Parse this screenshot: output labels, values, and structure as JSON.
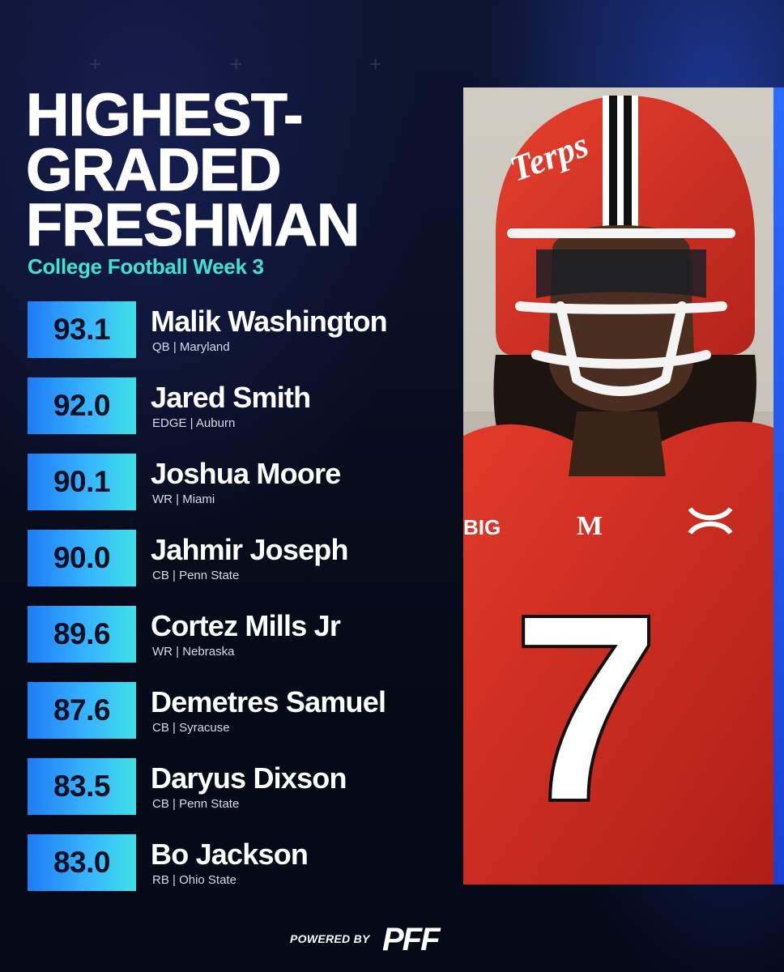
{
  "header": {
    "title": "HIGHEST-\nGRADED\nFRESHMAN",
    "subtitle": "College Football Week 3"
  },
  "players": [
    {
      "grade": "93.1",
      "name": "Malik Washington",
      "info": "QB | Maryland"
    },
    {
      "grade": "92.0",
      "name": "Jared Smith",
      "info": "EDGE | Auburn"
    },
    {
      "grade": "90.1",
      "name": "Joshua Moore",
      "info": "WR | Miami"
    },
    {
      "grade": "90.0",
      "name": "Jahmir Joseph",
      "info": "CB | Penn State"
    },
    {
      "grade": "89.6",
      "name": "Cortez Mills Jr",
      "info": "WR | Nebraska"
    },
    {
      "grade": "87.6",
      "name": "Demetres Samuel",
      "info": "CB | Syracuse"
    },
    {
      "grade": "83.5",
      "name": "Daryus Dixson",
      "info": "CB | Penn State"
    },
    {
      "grade": "83.0",
      "name": "Bo Jackson",
      "info": "RB | Ohio State"
    }
  ],
  "photo": {
    "jersey_number": "7",
    "chest_logo": "M",
    "sleeve_text": "BIG",
    "helmet_script": "Terps"
  },
  "footer": {
    "powered_by": "POWERED BY",
    "logo_text": "PFF"
  },
  "colors": {
    "accent_teal": "#3ee3d0",
    "grade_gradient_start": "#1e7cf5",
    "grade_gradient_end": "#3fe0e6",
    "background": "#070b1a",
    "jersey_red": "#d22a1e"
  }
}
